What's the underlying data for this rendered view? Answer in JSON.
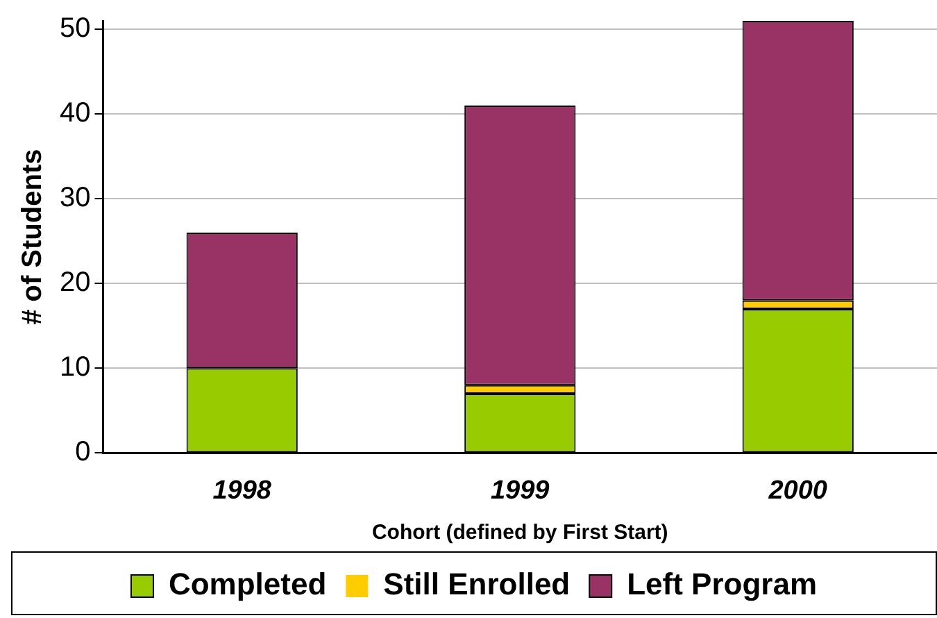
{
  "chart_data": {
    "type": "bar",
    "stacked": true,
    "xlabel": "Cohort (defined by First Start)",
    "ylabel": "# of Students",
    "categories": [
      "1998",
      "1999",
      "2000"
    ],
    "series": [
      {
        "name": "Completed",
        "color": "#99cc00",
        "values": [
          10,
          7,
          17
        ]
      },
      {
        "name": "Still Enrolled",
        "color": "#ffcc00",
        "values": [
          0,
          1,
          1
        ]
      },
      {
        "name": "Left Program",
        "color": "#993366",
        "values": [
          16,
          33,
          33
        ]
      }
    ],
    "ylim": [
      0,
      51
    ],
    "yticks": [
      0,
      10,
      20,
      30,
      40,
      50
    ],
    "grid": "y",
    "legend": "bottom"
  }
}
